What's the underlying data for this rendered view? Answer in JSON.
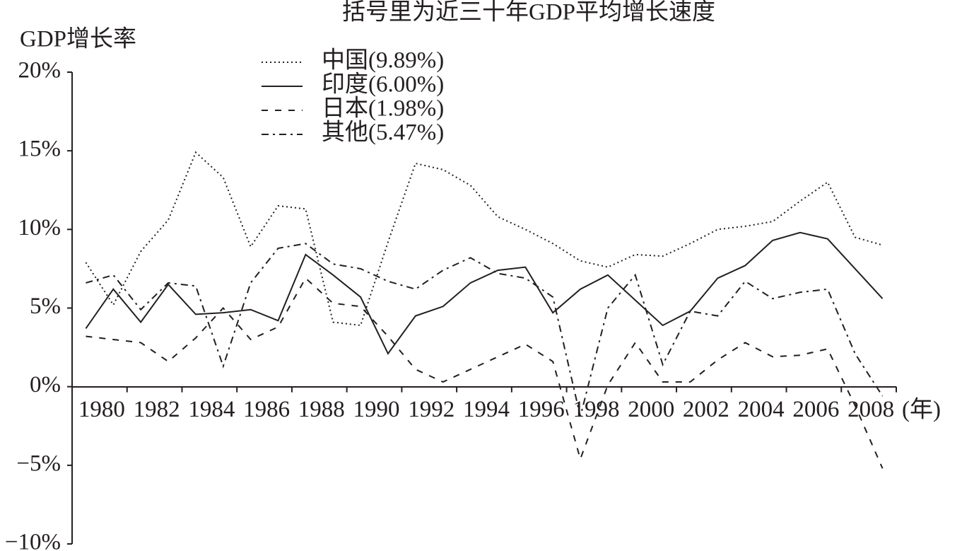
{
  "chart_data": {
    "type": "line",
    "title": "括号里为近三十年GDP平均增长速度",
    "y_label": "GDP增长率",
    "x_label": "(年)",
    "categories": [
      null,
      "1980",
      null,
      "1982",
      null,
      "1984",
      null,
      "1986",
      null,
      "1988",
      null,
      "1990",
      null,
      "1992",
      null,
      "1994",
      null,
      "1996",
      null,
      "1998",
      null,
      "2000",
      null,
      "2002",
      null,
      "2004",
      null,
      "2006",
      null,
      "2008"
    ],
    "ylim": [
      -10,
      20
    ],
    "yticks": [
      {
        "value": -10,
        "label": "−10%"
      },
      {
        "value": -5,
        "label": "−5%"
      },
      {
        "value": 0,
        "label": "0%"
      },
      {
        "value": 5,
        "label": "5%"
      },
      {
        "value": 10,
        "label": "10%"
      },
      {
        "value": 15,
        "label": "15%"
      },
      {
        "value": 20,
        "label": "20%"
      }
    ],
    "grid": false,
    "legend": "top",
    "series": [
      {
        "name": "中国(9.89%)",
        "color": "#231f20",
        "line_style": "dotted",
        "values": [
          7.9,
          5.2,
          8.6,
          10.6,
          14.9,
          13.3,
          8.9,
          11.5,
          11.3,
          4.1,
          3.9,
          9.2,
          14.2,
          13.8,
          12.8,
          10.8,
          10.0,
          9.1,
          8.0,
          7.6,
          8.4,
          8.3,
          9.1,
          10.0,
          10.2,
          10.5,
          11.8,
          13.0,
          9.5,
          9.0
        ]
      },
      {
        "name": "印度(6.00%)",
        "color": "#231f20",
        "line_style": "solid",
        "values": [
          3.7,
          6.2,
          4.1,
          6.5,
          4.6,
          4.7,
          4.9,
          4.2,
          8.4,
          7.1,
          5.7,
          2.1,
          4.5,
          5.1,
          6.6,
          7.4,
          7.6,
          4.7,
          6.2,
          7.1,
          5.5,
          3.9,
          4.8,
          6.9,
          7.7,
          9.3,
          9.8,
          9.4,
          7.5,
          5.6
        ]
      },
      {
        "name": "日本(1.98%)",
        "color": "#231f20",
        "line_style": "dashed",
        "values": [
          3.2,
          3.0,
          2.8,
          1.6,
          3.1,
          5.0,
          3.0,
          3.8,
          6.9,
          5.3,
          5.1,
          3.2,
          1.1,
          0.3,
          1.1,
          1.9,
          2.7,
          1.6,
          -4.6,
          0.1,
          2.8,
          0.3,
          0.3,
          1.7,
          2.8,
          1.9,
          2.0,
          2.4,
          -1.2,
          -5.2
        ]
      },
      {
        "name": "其他(5.47%)",
        "color": "#231f20",
        "line_style": "dashdot",
        "values": [
          6.6,
          7.1,
          4.9,
          6.6,
          6.4,
          1.3,
          6.6,
          8.8,
          9.1,
          7.8,
          7.5,
          6.7,
          6.2,
          7.4,
          8.2,
          7.2,
          6.9,
          5.7,
          -1.9,
          5.0,
          7.1,
          1.4,
          4.8,
          4.5,
          6.7,
          5.6,
          6.0,
          6.2,
          2.1,
          -0.6
        ]
      }
    ]
  }
}
